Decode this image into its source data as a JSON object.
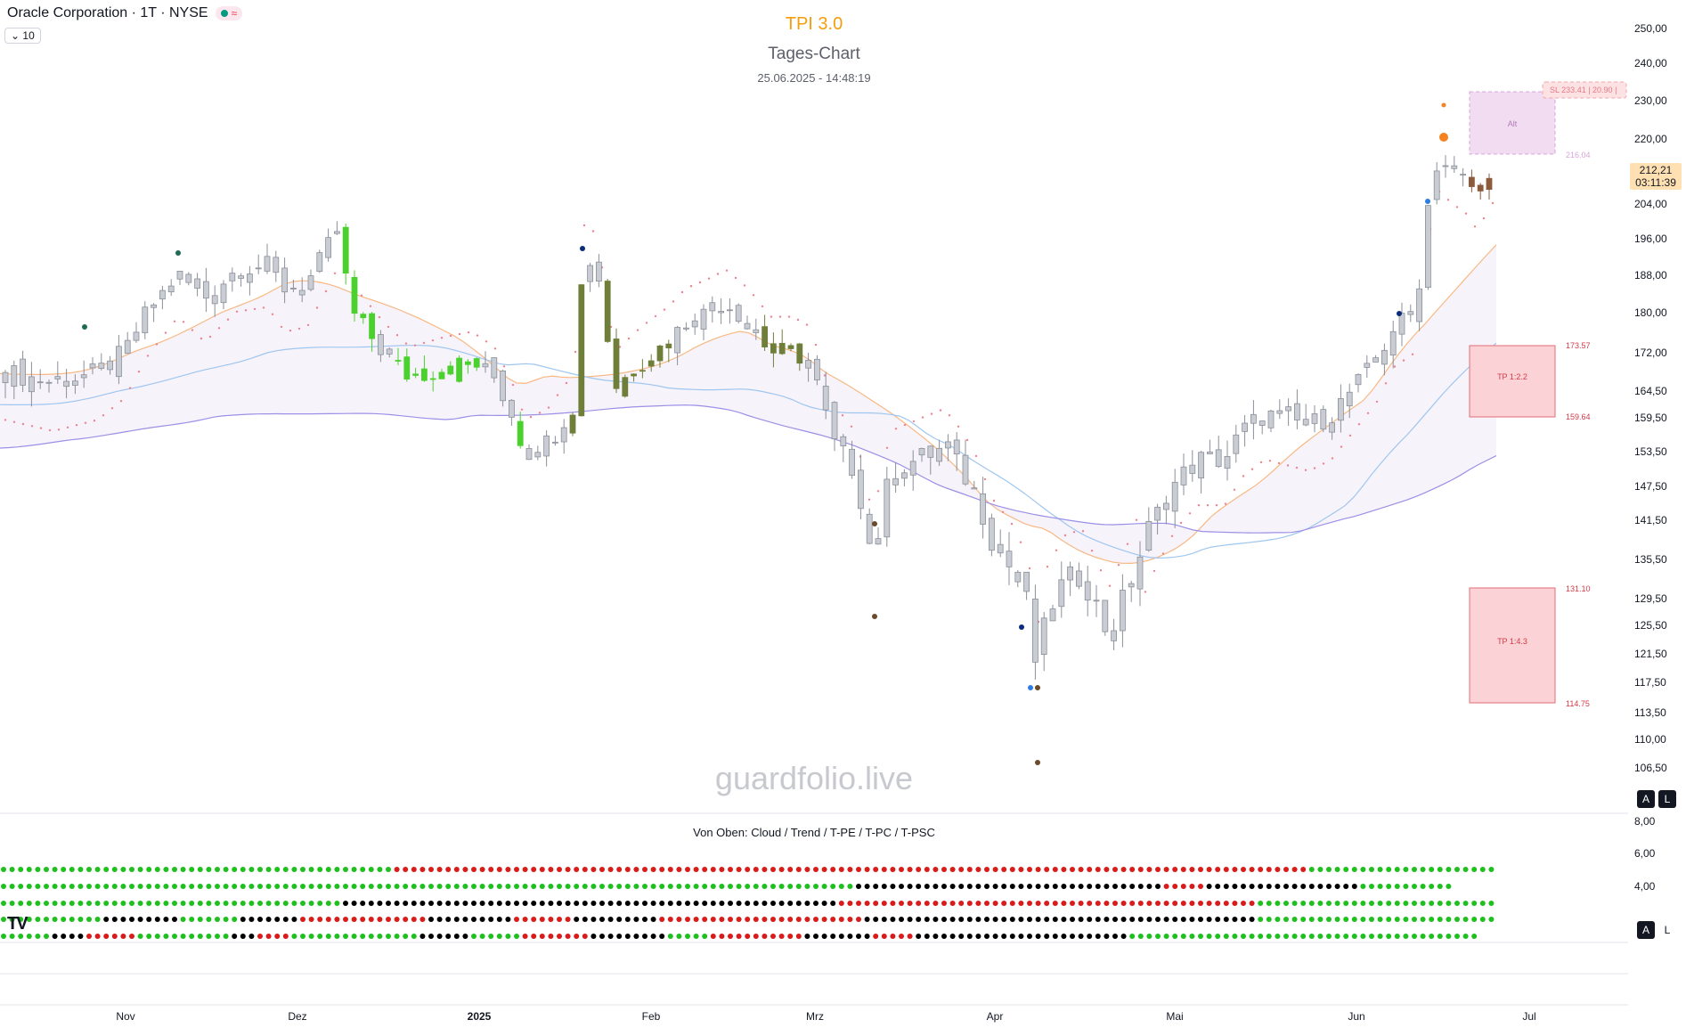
{
  "legend": {
    "symbol": "Oracle Corporation · 1T · NYSE",
    "wave_icon": "≈",
    "collapse_count": "10"
  },
  "header": {
    "title": "TPI 3.0",
    "subtitle": "Tages-Chart",
    "datetime": "25.06.2025 - 14:48:19"
  },
  "watermark": "guardfolio.live",
  "current_price": {
    "price": "212,21",
    "countdown": "03:11:39"
  },
  "price_axis_labels": [
    "250,00",
    "240,00",
    "230,00",
    "220,00",
    "204,00",
    "196,00",
    "188,00",
    "180,00",
    "172,00",
    "164,50",
    "159,50",
    "153,50",
    "147,50",
    "141,50",
    "135,50",
    "129,50",
    "125,50",
    "121,50",
    "117,50",
    "113,50",
    "110,00",
    "106,50"
  ],
  "time_axis_labels": [
    "Nov",
    "Dez",
    "2025",
    "Feb",
    "Mrz",
    "Apr",
    "Mai",
    "Jun",
    "Jul"
  ],
  "zones": {
    "alt_label": "Alt",
    "alt_value": "216.04",
    "sl_label": "SL 233.41 | 20.90 |",
    "tp1_label": "TP 1:2.2",
    "tp1_top": "173.57",
    "tp1_bottom": "159.64",
    "tp2_label": "TP 1:4.3",
    "tp2_top": "131.10",
    "tp2_bottom": "114.75"
  },
  "scale_buttons": {
    "auto": "A",
    "log": "L"
  },
  "subpanel": {
    "caption": "Von Oben: Cloud / Trend / T-PE / T-PC / T-PSC",
    "axis_labels": [
      "8,00",
      "6,00",
      "4,00"
    ],
    "rows": [
      "ggggggggggggggggggggggggggggggggggggggggggggggrrrrrrrrrrrrrrrrrrrrrrrrrrrrrrrrrrrrrrrrrrrrrrrrrrrrrrrrrrrrrrrrrrrrrrrrrrrrrrrrrrrrrrrrrrrrrrrrrrrrrrrrrrrgggggggggggggggggggggggggggggg",
      "ggggggggggggggggggggggggggggggggggggggggggggggggggggggggggggggggggggggggggggggggggggggggggggggggggggbbbbbbbbbbbbbbbbbbbbbbbbbbbbbbbbbbbbrrrrrbbbbbbbbbbbbbbbbbbggggggggggg",
      "ggggggggggggggggggggggggggggggggggggggggbbbbbbbbbbbbbbbbbbbbbbbbbbbbbbbbbbbbbbbbbbbbbbbbbbbbbbbbbbrrrrrrrrrrrrrrrrrrrrrrrrrrrrrrrrrrrrrrrrrrrrrrrrrgggggggggggggggggggggggggggggg",
      "ggggggggggggbbbbbbbbbgggggggbbbbbbbrrrrrrrrrrrrrrrbbbbbbbbbbrrrrrrrbbbbbbbbbbrrrrrrrrrrrrrrrrrrrrrrrrbbbbbbbbbbbbbbbbbbbbbbbbbbbbbbbbbbbbbbbbbbbbbbgggggggggggggggggggggggggggggg",
      "ggggggbbbbrrrrrrgggggggggggbbbrrrrgggggggggggggggbbbbbbggggggrrrrrrrrbbbbbbbbbgggggrrrrrrrrrrrbbbbbbbbrrrrrbbbbbbbbbbbbbbbbbbbbbbbbbggggggggggggggggggggggggggggggggggggggggg"
    ]
  },
  "colors": {
    "candle_up_strong": "#4bd12d",
    "candle_up_olive": "#6f7f3a",
    "candle_neutral": "#c9ccd3",
    "candle_down_brown": "#8d5a3c",
    "tp_zone": "#fbd3d6",
    "alt_zone": "#f1dcf2",
    "ema_fast": "#f8b882",
    "ema_mid": "#9fc6ef",
    "ema_slow": "#9b8fe6",
    "trail": "#f0828d",
    "dot_green": "#1fbf1f",
    "dot_red": "#d81b1b",
    "dot_black": "#000000"
  },
  "chart_data": {
    "type": "candlestick",
    "title": "TPI 3.0",
    "subtitle": "Tages-Chart",
    "ylim": [
      104,
      252
    ],
    "x_range": [
      "2024-10-22",
      "2025-07-01"
    ],
    "grid": false,
    "approx_daily_closes": [
      {
        "period": "late Oct 2024",
        "range": [
          166,
          170
        ]
      },
      {
        "period": "Nov 2024",
        "range": [
          168,
          190
        ]
      },
      {
        "period": "early Dec 2024",
        "high": 198
      },
      {
        "period": "mid Dec 2024",
        "range": [
          170,
          178
        ]
      },
      {
        "period": "early Jan 2025",
        "range": [
          153,
          168
        ]
      },
      {
        "period": "late Jan 2025",
        "range": [
          190,
          196
        ]
      },
      {
        "period": "Feb 2025",
        "range": [
          165,
          182
        ]
      },
      {
        "period": "Mar 2025",
        "range": [
          145,
          162
        ]
      },
      {
        "period": "early Apr 2025",
        "low": 119
      },
      {
        "period": "May 2025",
        "range": [
          148,
          163
        ]
      },
      {
        "period": "Jun 2025",
        "range": [
          178,
          216
        ]
      },
      {
        "period": "2025-06-25",
        "close": 212.21
      }
    ],
    "annotations": [
      "Alt 216.04",
      "SL 233.41 | 20.90",
      "TP 1:2.2 173.57-159.64",
      "TP 1:4.3 131.10-114.75"
    ]
  }
}
